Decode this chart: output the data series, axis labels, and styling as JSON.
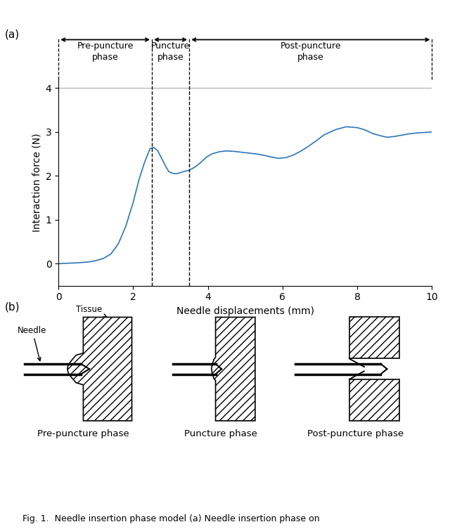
{
  "panel_a_label": "(a)",
  "panel_b_label": "(b)",
  "xlabel": "Needle displacements (mm)",
  "ylabel": "Interaction force (N)",
  "xlim": [
    0,
    10
  ],
  "ylim": [
    -0.5,
    4.2
  ],
  "yticks": [
    0,
    1,
    2,
    3,
    4
  ],
  "xticks": [
    0,
    2,
    4,
    6,
    8,
    10
  ],
  "phase1_end": 2.5,
  "phase2_end": 3.5,
  "phase3_end": 10.0,
  "line_color": "#2e75b6",
  "fig_caption": "Fig. 1.  Needle insertion phase model (a) Needle insertion phase on",
  "curve_x": [
    0.0,
    0.2,
    0.5,
    0.8,
    1.0,
    1.2,
    1.4,
    1.6,
    1.8,
    2.0,
    2.15,
    2.3,
    2.45,
    2.55,
    2.65,
    2.75,
    2.85,
    2.95,
    3.05,
    3.15,
    3.25,
    3.35,
    3.5,
    3.65,
    3.8,
    3.95,
    4.1,
    4.3,
    4.5,
    4.7,
    4.9,
    5.1,
    5.3,
    5.5,
    5.7,
    5.9,
    6.1,
    6.3,
    6.5,
    6.7,
    6.9,
    7.1,
    7.4,
    7.7,
    8.0,
    8.2,
    8.4,
    8.6,
    8.8,
    9.0,
    9.2,
    9.4,
    9.6,
    9.8,
    10.0
  ],
  "curve_y": [
    0.0,
    0.01,
    0.02,
    0.04,
    0.07,
    0.12,
    0.22,
    0.45,
    0.85,
    1.4,
    1.9,
    2.3,
    2.62,
    2.65,
    2.58,
    2.42,
    2.25,
    2.1,
    2.06,
    2.05,
    2.07,
    2.1,
    2.13,
    2.2,
    2.3,
    2.42,
    2.5,
    2.55,
    2.57,
    2.56,
    2.54,
    2.52,
    2.5,
    2.47,
    2.43,
    2.4,
    2.42,
    2.48,
    2.57,
    2.68,
    2.8,
    2.93,
    3.05,
    3.12,
    3.1,
    3.05,
    2.97,
    2.92,
    2.88,
    2.9,
    2.93,
    2.96,
    2.98,
    2.99,
    3.0
  ]
}
